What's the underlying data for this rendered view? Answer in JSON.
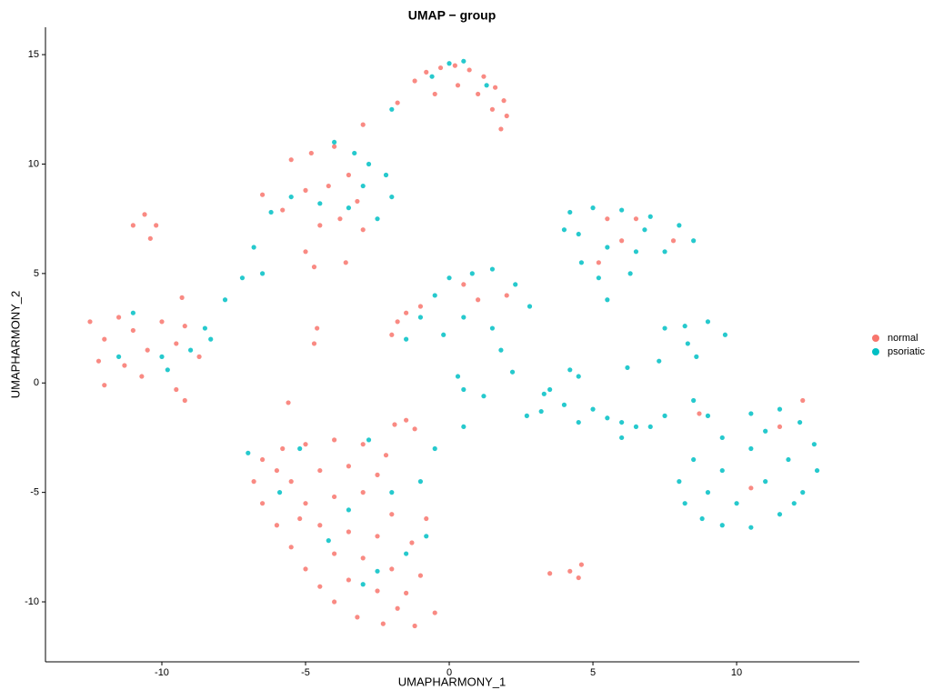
{
  "chart_data": {
    "type": "scatter",
    "title": "UMAP − group",
    "x_label": "UMAPHARMONY_1",
    "y_label": "UMAPHARMONY_2",
    "xlim": [
      -14.05,
      14.27
    ],
    "ylim": [
      -12.74,
      16.25
    ],
    "xticks": [
      -10,
      -5,
      0,
      5,
      10
    ],
    "yticks": [
      -10,
      -5,
      0,
      5,
      10,
      15
    ],
    "grid": false,
    "legend": "right",
    "series": [
      {
        "name": "normal",
        "color": "#F8766D",
        "x": [
          -1.2,
          -0.8,
          -0.3,
          0.2,
          0.7,
          1.2,
          1.6,
          1.9,
          2.0,
          1.8,
          -0.5,
          0.3,
          1.0,
          1.5,
          -1.8,
          -3,
          -5.5,
          -4.8,
          -4,
          -3.5,
          -4.2,
          -5,
          -3.2,
          -3.8,
          -6.5,
          -5.8,
          -4.5,
          -3,
          -5,
          -4.7,
          -3.6,
          -10.6,
          -10.2,
          -10.4,
          -11,
          -12.5,
          -12,
          -11.5,
          -11,
          -10.5,
          -10,
          -9.5,
          -12.2,
          -11.3,
          -10.7,
          -9.2,
          -8.7,
          -12,
          -9.2,
          -9.5,
          -9.3,
          -4.6,
          -4.7,
          -5.6,
          -1.5,
          -1.2,
          -1.9,
          -6.5,
          -6.8,
          -6.5,
          -6,
          -5.5,
          -5,
          -4.5,
          -4,
          -3.2,
          -2.3,
          -1.2,
          -0.5,
          -5.8,
          -5,
          -4,
          -3,
          -2.2,
          -5.5,
          -4.5,
          -3.5,
          -5,
          -4,
          -3,
          -4.5,
          -3.5,
          -2.5,
          -4,
          -3,
          -2,
          -3.5,
          -2.5,
          -1.5,
          -1,
          -2,
          -1.3,
          -0.8,
          -2.5,
          -6,
          -5.2,
          -1.8,
          -1.8,
          -1.5,
          -2,
          0.5,
          1,
          2,
          -1,
          5.5,
          6.5,
          7.8,
          5.2,
          6,
          4.2,
          4.6,
          4.5,
          3.5,
          11.5,
          10.5,
          8.7,
          12.3
        ],
        "y": [
          13.8,
          14.2,
          14.4,
          14.5,
          14.3,
          14,
          13.5,
          12.9,
          12.2,
          11.6,
          13.2,
          13.6,
          13.2,
          12.5,
          12.8,
          11.8,
          10.2,
          10.5,
          10.8,
          9.5,
          9,
          8.8,
          8.3,
          7.5,
          8.6,
          7.9,
          7.2,
          7,
          6,
          5.3,
          5.5,
          7.7,
          7.2,
          6.6,
          7.2,
          2.8,
          2,
          3,
          2.4,
          1.5,
          2.8,
          1.8,
          1,
          0.8,
          0.3,
          2.6,
          1.2,
          -0.1,
          -0.8,
          -0.3,
          3.9,
          2.5,
          1.8,
          -0.9,
          -1.7,
          -2.1,
          -1.9,
          -3.5,
          -4.5,
          -5.5,
          -6.5,
          -7.5,
          -8.5,
          -9.3,
          -10,
          -10.7,
          -11,
          -11.1,
          -10.5,
          -3,
          -2.8,
          -2.6,
          -2.8,
          -3.3,
          -4.5,
          -4,
          -3.8,
          -5.5,
          -5.2,
          -5,
          -6.5,
          -6.8,
          -7,
          -7.8,
          -8,
          -8.5,
          -9,
          -9.5,
          -9.6,
          -8.8,
          -6,
          -7.3,
          -6.2,
          -4.2,
          -4,
          -6.2,
          -10.3,
          2.8,
          3.2,
          2.2,
          4.5,
          3.8,
          4,
          3.5,
          7.5,
          7.5,
          6.5,
          5.5,
          6.5,
          -8.6,
          -8.3,
          -8.9,
          -8.7,
          -2,
          -4.8,
          -1.4,
          -0.8
        ]
      },
      {
        "name": "psoriatic",
        "color": "#00BFC4",
        "x": [
          0,
          0.5,
          -0.6,
          1.3,
          -2,
          -4,
          -3.3,
          -2.2,
          -2,
          -3,
          -4.5,
          -5.5,
          -6.2,
          -2.5,
          -3.5,
          -6.8,
          -6.5,
          -7.2,
          -2.8,
          -8.5,
          -9,
          -10,
          -11.5,
          -8.3,
          -7.8,
          -9.8,
          -11,
          -1.5,
          -1,
          -0.5,
          0,
          0.8,
          1.5,
          2.3,
          2.8,
          0.5,
          1.5,
          1.8,
          -0.2,
          2.2,
          0.3,
          0.5,
          1.2,
          3.3,
          2.7,
          4.2,
          5,
          6,
          7,
          8,
          8.5,
          7.5,
          6.5,
          5.5,
          4.5,
          5.2,
          5.5,
          4.6,
          6.3,
          6.8,
          4,
          7.5,
          8.2,
          9,
          9.6,
          8.3,
          7.3,
          8.6,
          3.5,
          4,
          4.5,
          5,
          5.5,
          6,
          6.5,
          7,
          7.5,
          6,
          4.5,
          3.2,
          8.5,
          9,
          6.2,
          4.2,
          8,
          8.2,
          8.8,
          9.5,
          10.5,
          11.5,
          12.3,
          12.8,
          12.7,
          12.2,
          11.5,
          10.5,
          9.5,
          8.5,
          9.5,
          10.5,
          11,
          10,
          11.8,
          9,
          11,
          12,
          -5.2,
          -3.5,
          -2,
          -1.5,
          -2.5,
          -1,
          -0.5,
          0.5,
          -4.2,
          -7,
          -2.8,
          -5.9,
          -0.8,
          -3
        ],
        "y": [
          14.6,
          14.7,
          14.0,
          13.6,
          12.5,
          11,
          10.5,
          9.5,
          8.5,
          9,
          8.2,
          8.5,
          7.8,
          7.5,
          8,
          6.2,
          5,
          4.8,
          10,
          2.5,
          1.5,
          1.2,
          1.2,
          2,
          3.8,
          0.6,
          3.2,
          2,
          3,
          4,
          4.8,
          5,
          5.2,
          4.5,
          3.5,
          3,
          2.5,
          1.5,
          2.2,
          0.5,
          0.3,
          -0.3,
          -0.6,
          -0.5,
          -1.5,
          7.8,
          8,
          7.9,
          7.6,
          7.2,
          6.5,
          6,
          6,
          6.2,
          6.8,
          4.8,
          3.8,
          5.5,
          5,
          7,
          7,
          2.5,
          2.6,
          2.8,
          2.2,
          1.8,
          1,
          1.2,
          -0.3,
          -1,
          0.3,
          -1.2,
          -1.6,
          -1.8,
          -2,
          -2,
          -1.5,
          -2.5,
          -1.8,
          -1.3,
          -0.8,
          -1.5,
          0.7,
          0.6,
          -4.5,
          -5.5,
          -6.2,
          -6.5,
          -6.6,
          -6,
          -5,
          -4,
          -2.8,
          -1.8,
          -1.2,
          -1.4,
          -2.5,
          -3.5,
          -4,
          -3,
          -4.5,
          -5.5,
          -3.5,
          -5,
          -2.2,
          -5.5,
          -3,
          -5.8,
          -5,
          -7.8,
          -8.6,
          -4.5,
          -3,
          -2,
          -7.2,
          -3.2,
          -2.6,
          -5,
          -7,
          -9.2
        ]
      }
    ]
  }
}
